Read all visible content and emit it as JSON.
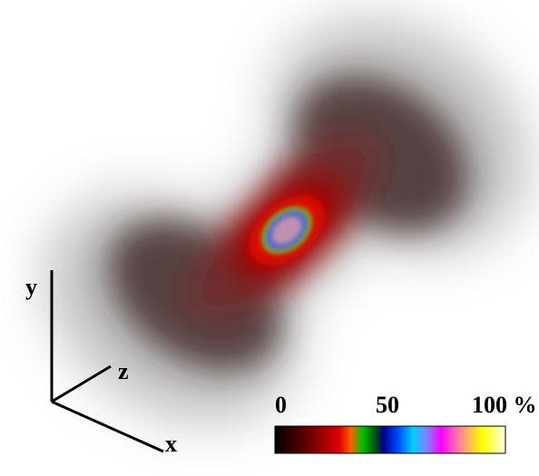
{
  "axes": {
    "x": "x",
    "y": "y",
    "z": "z"
  },
  "colorbar": {
    "labels": [
      "0",
      "50",
      "100 %"
    ]
  }
}
